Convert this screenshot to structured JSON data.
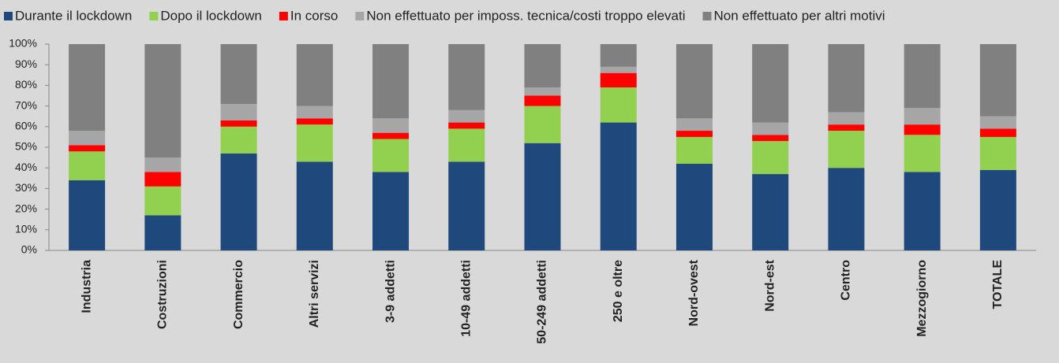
{
  "chart_data": {
    "type": "stacked_bar",
    "categories": [
      "Industria",
      "Costruzioni",
      "Commercio",
      "Altri servizi",
      "3-9 addetti",
      "10-49 addetti",
      "50-249 addetti",
      "250 e oltre",
      "Nord-ovest",
      "Nord-est",
      "Centro",
      "Mezzogiorno",
      "TOTALE"
    ],
    "series": [
      {
        "name": "Durante il lockdown",
        "color": "#1f497d",
        "values": [
          34,
          17,
          47,
          43,
          38,
          43,
          52,
          62,
          42,
          37,
          40,
          38,
          39
        ]
      },
      {
        "name": "Dopo il lockdown",
        "color": "#92d050",
        "values": [
          14,
          14,
          13,
          18,
          16,
          16,
          18,
          17,
          13,
          16,
          18,
          18,
          16
        ]
      },
      {
        "name": "In corso",
        "color": "#ff0000",
        "values": [
          3,
          7,
          3,
          3,
          3,
          3,
          5,
          7,
          3,
          3,
          3,
          5,
          4
        ]
      },
      {
        "name": "Non effettuato per imposs. tecnica/costi troppo elevati",
        "color": "#a6a6a6",
        "values": [
          7,
          7,
          8,
          6,
          7,
          6,
          4,
          3,
          6,
          6,
          6,
          8,
          6
        ]
      },
      {
        "name": "Non effettuato per altri motivi",
        "color": "#808080",
        "values": [
          42,
          55,
          29,
          30,
          36,
          32,
          21,
          11,
          36,
          38,
          33,
          31,
          35
        ]
      }
    ],
    "ylim": [
      0,
      100
    ],
    "yticks": [
      {
        "value": 0,
        "label": "0%"
      },
      {
        "value": 10,
        "label": "10%"
      },
      {
        "value": 20,
        "label": "20%"
      },
      {
        "value": 30,
        "label": "30%"
      },
      {
        "value": 40,
        "label": "40%"
      },
      {
        "value": 50,
        "label": "50%"
      },
      {
        "value": 60,
        "label": "60%"
      },
      {
        "value": 70,
        "label": "70%"
      },
      {
        "value": 80,
        "label": "80%"
      },
      {
        "value": 90,
        "label": "90%"
      },
      {
        "value": 100,
        "label": "100%"
      }
    ],
    "grid": false,
    "legend": "top"
  }
}
